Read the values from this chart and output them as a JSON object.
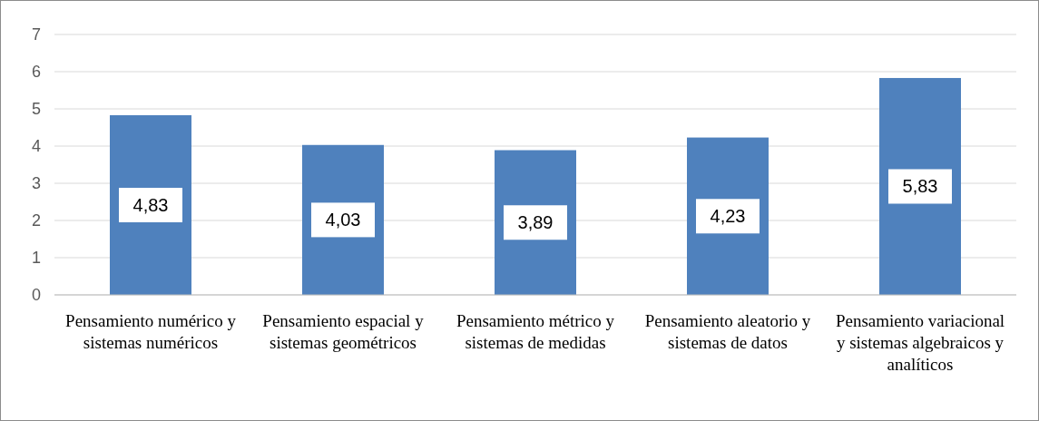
{
  "chart_data": {
    "type": "bar",
    "categories": [
      "Pensamiento numérico y sistemas numéricos",
      "Pensamiento espacial y sistemas geométricos",
      "Pensamiento métrico y sistemas de medidas",
      "Pensamiento aleatorio y sistemas de datos",
      "Pensamiento variacional y sistemas algebraicos y analíticos"
    ],
    "values": [
      4.83,
      4.03,
      3.89,
      4.23,
      5.83
    ],
    "value_labels": [
      "4,83",
      "4,03",
      "3,89",
      "4,23",
      "5,83"
    ],
    "color": "#4f81bd",
    "ylim": [
      0,
      7
    ],
    "yticks": [
      0,
      1,
      2,
      3,
      4,
      5,
      6,
      7
    ],
    "grid": "y"
  }
}
